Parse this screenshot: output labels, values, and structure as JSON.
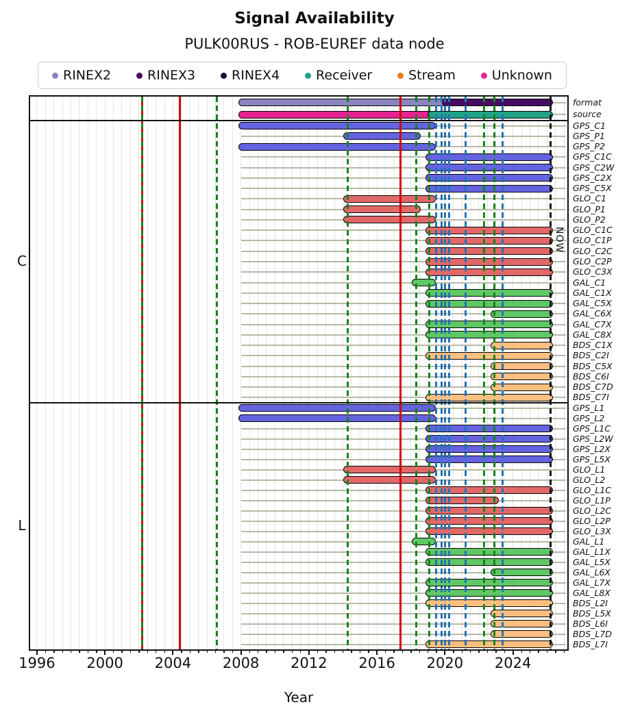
{
  "header": {
    "title": "Signal Availability",
    "subtitle": "PULK00RUS - ROB-EUREF data node"
  },
  "chart_data": {
    "type": "gantt-timeline",
    "title": "Signal Availability",
    "subtitle": "PULK00RUS - ROB-EUREF data node",
    "xlabel": "Year",
    "xlim": [
      1995.6,
      2027.2
    ],
    "x_major_ticks": [
      1996,
      2000,
      2004,
      2008,
      2012,
      2016,
      2020,
      2024
    ],
    "x_minor_step": 0.5,
    "grid": true,
    "now": 2026.2,
    "now_label": "NOW",
    "track_start": 2008.0,
    "legend": {
      "position": "top",
      "entries": [
        {
          "label": "RINEX2",
          "color": "#8a84c2"
        },
        {
          "label": "RINEX3",
          "color": "#470a63"
        },
        {
          "label": "RINEX4",
          "color": "#20092f"
        },
        {
          "label": "Receiver",
          "color": "#1fa287"
        },
        {
          "label": "Stream",
          "color": "#e87a1e"
        },
        {
          "label": "Unknown",
          "color": "#e62290"
        }
      ]
    },
    "colors": {
      "GPS": "#6463e0",
      "GLO": "#e26868",
      "GAL": "#5fc765",
      "BDS": "#fbbf81",
      "RINEX2": "#8a84c2",
      "RINEX3": "#470a63",
      "RINEX4": "#20092f",
      "Receiver": "#1fa287",
      "Stream": "#e87a1e",
      "Unknown": "#e62290"
    },
    "sections": [
      {
        "label": "",
        "rows": [
          {
            "label": "format",
            "segments": [
              {
                "start": 2008.0,
                "end": 2020.0,
                "color_key": "RINEX2"
              },
              {
                "start": 2020.0,
                "end": 2026.2,
                "color_key": "RINEX3"
              }
            ]
          },
          {
            "label": "source",
            "segments": [
              {
                "start": 2008.0,
                "end": 2019.15,
                "color_key": "Unknown"
              },
              {
                "start": 2019.15,
                "end": 2026.2,
                "color_key": "Receiver"
              }
            ]
          }
        ]
      },
      {
        "label": "C",
        "rows": [
          {
            "label": "GPS_C1",
            "segments": [
              {
                "start": 2008.0,
                "end": 2019.3,
                "color_key": "GPS"
              }
            ]
          },
          {
            "label": "GPS_P1",
            "segments": [
              {
                "start": 2014.2,
                "end": 2018.4,
                "color_key": "GPS"
              }
            ]
          },
          {
            "label": "GPS_P2",
            "segments": [
              {
                "start": 2008.0,
                "end": 2019.3,
                "color_key": "GPS"
              }
            ]
          },
          {
            "label": "GPS_C1C",
            "segments": [
              {
                "start": 2019.0,
                "end": 2026.2,
                "color_key": "GPS"
              }
            ]
          },
          {
            "label": "GPS_C2W",
            "segments": [
              {
                "start": 2019.0,
                "end": 2026.2,
                "color_key": "GPS"
              }
            ]
          },
          {
            "label": "GPS_C2X",
            "segments": [
              {
                "start": 2019.0,
                "end": 2026.2,
                "color_key": "GPS"
              }
            ]
          },
          {
            "label": "GPS_C5X",
            "segments": [
              {
                "start": 2019.0,
                "end": 2026.2,
                "color_key": "GPS"
              }
            ]
          },
          {
            "label": "GLO_C1",
            "segments": [
              {
                "start": 2014.2,
                "end": 2019.3,
                "color_key": "GLO"
              }
            ]
          },
          {
            "label": "GLO_P1",
            "segments": [
              {
                "start": 2014.2,
                "end": 2018.4,
                "color_key": "GLO"
              }
            ]
          },
          {
            "label": "GLO_P2",
            "segments": [
              {
                "start": 2014.2,
                "end": 2019.3,
                "color_key": "GLO"
              }
            ]
          },
          {
            "label": "GLO_C1C",
            "segments": [
              {
                "start": 2019.0,
                "end": 2026.2,
                "color_key": "GLO"
              }
            ]
          },
          {
            "label": "GLO_C1P",
            "segments": [
              {
                "start": 2019.0,
                "end": 2026.2,
                "color_key": "GLO"
              }
            ]
          },
          {
            "label": "GLO_C2C",
            "segments": [
              {
                "start": 2019.0,
                "end": 2026.2,
                "color_key": "GLO"
              }
            ]
          },
          {
            "label": "GLO_C2P",
            "segments": [
              {
                "start": 2019.0,
                "end": 2026.2,
                "color_key": "GLO"
              }
            ]
          },
          {
            "label": "GLO_C3X",
            "segments": [
              {
                "start": 2019.0,
                "end": 2026.2,
                "color_key": "GLO"
              }
            ]
          },
          {
            "label": "GAL_C1",
            "segments": [
              {
                "start": 2018.2,
                "end": 2019.3,
                "color_key": "GAL"
              }
            ]
          },
          {
            "label": "GAL_C1X",
            "segments": [
              {
                "start": 2019.0,
                "end": 2026.2,
                "color_key": "GAL"
              }
            ]
          },
          {
            "label": "GAL_C5X",
            "segments": [
              {
                "start": 2019.0,
                "end": 2026.2,
                "color_key": "GAL"
              }
            ]
          },
          {
            "label": "GAL_C6X",
            "segments": [
              {
                "start": 2022.85,
                "end": 2026.2,
                "color_key": "GAL"
              }
            ]
          },
          {
            "label": "GAL_C7X",
            "segments": [
              {
                "start": 2019.0,
                "end": 2026.2,
                "color_key": "GAL"
              }
            ]
          },
          {
            "label": "GAL_C8X",
            "segments": [
              {
                "start": 2019.0,
                "end": 2026.2,
                "color_key": "GAL"
              }
            ]
          },
          {
            "label": "BDS_C1X",
            "segments": [
              {
                "start": 2022.85,
                "end": 2026.2,
                "color_key": "BDS"
              }
            ]
          },
          {
            "label": "BDS_C2I",
            "segments": [
              {
                "start": 2019.0,
                "end": 2026.2,
                "color_key": "BDS"
              }
            ]
          },
          {
            "label": "BDS_C5X",
            "segments": [
              {
                "start": 2022.85,
                "end": 2026.2,
                "color_key": "BDS"
              }
            ]
          },
          {
            "label": "BDS_C6I",
            "segments": [
              {
                "start": 2022.85,
                "end": 2026.2,
                "color_key": "BDS"
              }
            ]
          },
          {
            "label": "BDS_C7D",
            "segments": [
              {
                "start": 2022.85,
                "end": 2026.2,
                "color_key": "BDS"
              }
            ]
          },
          {
            "label": "BDS_C7I",
            "segments": [
              {
                "start": 2019.0,
                "end": 2026.2,
                "color_key": "BDS"
              }
            ]
          }
        ]
      },
      {
        "label": "L",
        "rows": [
          {
            "label": "GPS_L1",
            "segments": [
              {
                "start": 2008.0,
                "end": 2019.3,
                "color_key": "GPS"
              }
            ]
          },
          {
            "label": "GPS_L2",
            "segments": [
              {
                "start": 2008.0,
                "end": 2019.3,
                "color_key": "GPS"
              }
            ]
          },
          {
            "label": "GPS_L1C",
            "segments": [
              {
                "start": 2019.0,
                "end": 2026.2,
                "color_key": "GPS"
              }
            ]
          },
          {
            "label": "GPS_L2W",
            "segments": [
              {
                "start": 2019.0,
                "end": 2026.2,
                "color_key": "GPS"
              }
            ]
          },
          {
            "label": "GPS_L2X",
            "segments": [
              {
                "start": 2019.0,
                "end": 2026.2,
                "color_key": "GPS"
              }
            ]
          },
          {
            "label": "GPS_L5X",
            "segments": [
              {
                "start": 2019.0,
                "end": 2026.2,
                "color_key": "GPS"
              }
            ]
          },
          {
            "label": "GLO_L1",
            "segments": [
              {
                "start": 2014.2,
                "end": 2019.3,
                "color_key": "GLO"
              }
            ]
          },
          {
            "label": "GLO_L2",
            "segments": [
              {
                "start": 2014.2,
                "end": 2019.3,
                "color_key": "GLO"
              }
            ]
          },
          {
            "label": "GLO_L1C",
            "segments": [
              {
                "start": 2019.0,
                "end": 2026.2,
                "color_key": "GLO"
              }
            ]
          },
          {
            "label": "GLO_L1P",
            "segments": [
              {
                "start": 2019.0,
                "end": 2023.0,
                "color_key": "GLO"
              }
            ]
          },
          {
            "label": "GLO_L2C",
            "segments": [
              {
                "start": 2019.0,
                "end": 2026.2,
                "color_key": "GLO"
              }
            ]
          },
          {
            "label": "GLO_L2P",
            "segments": [
              {
                "start": 2019.0,
                "end": 2026.2,
                "color_key": "GLO"
              }
            ]
          },
          {
            "label": "GLO_L3X",
            "segments": [
              {
                "start": 2019.0,
                "end": 2026.2,
                "color_key": "GLO"
              }
            ]
          },
          {
            "label": "GAL_L1",
            "segments": [
              {
                "start": 2018.2,
                "end": 2019.3,
                "color_key": "GAL"
              }
            ]
          },
          {
            "label": "GAL_L1X",
            "segments": [
              {
                "start": 2019.0,
                "end": 2026.2,
                "color_key": "GAL"
              }
            ]
          },
          {
            "label": "GAL_L5X",
            "segments": [
              {
                "start": 2019.0,
                "end": 2026.2,
                "color_key": "GAL"
              }
            ]
          },
          {
            "label": "GAL_L6X",
            "segments": [
              {
                "start": 2022.85,
                "end": 2026.2,
                "color_key": "GAL"
              }
            ]
          },
          {
            "label": "GAL_L7X",
            "segments": [
              {
                "start": 2019.0,
                "end": 2026.2,
                "color_key": "GAL"
              }
            ]
          },
          {
            "label": "GAL_L8X",
            "segments": [
              {
                "start": 2019.0,
                "end": 2026.2,
                "color_key": "GAL"
              }
            ]
          },
          {
            "label": "BDS_L2I",
            "segments": [
              {
                "start": 2019.0,
                "end": 2026.2,
                "color_key": "BDS"
              }
            ]
          },
          {
            "label": "BDS_L5X",
            "segments": [
              {
                "start": 2022.85,
                "end": 2026.2,
                "color_key": "BDS"
              }
            ]
          },
          {
            "label": "BDS_L6I",
            "segments": [
              {
                "start": 2022.85,
                "end": 2026.2,
                "color_key": "BDS"
              }
            ]
          },
          {
            "label": "BDS_L7D",
            "segments": [
              {
                "start": 2022.85,
                "end": 2026.2,
                "color_key": "BDS"
              }
            ]
          },
          {
            "label": "BDS_L7I",
            "segments": [
              {
                "start": 2019.0,
                "end": 2026.2,
                "color_key": "BDS"
              }
            ]
          }
        ]
      }
    ],
    "vlines": [
      {
        "x": 2002.2,
        "style": "solid",
        "color": "#d40000"
      },
      {
        "x": 2002.2,
        "style": "dashed",
        "color": "#15831c"
      },
      {
        "x": 2004.4,
        "style": "solid",
        "color": "#d40000"
      },
      {
        "x": 2006.6,
        "style": "dashed",
        "color": "#15831c"
      },
      {
        "x": 2014.3,
        "style": "dashed",
        "color": "#15831c"
      },
      {
        "x": 2017.4,
        "style": "solid",
        "color": "#d40000"
      },
      {
        "x": 2018.3,
        "style": "dashed",
        "color": "#15831c"
      },
      {
        "x": 2019.07,
        "style": "dashed",
        "color": "#15831c"
      },
      {
        "x": 2019.5,
        "style": "dashed",
        "color": "#2273b5"
      },
      {
        "x": 2019.8,
        "style": "dashed",
        "color": "#2273b5"
      },
      {
        "x": 2020.0,
        "style": "dashed",
        "color": "#2273b5"
      },
      {
        "x": 2020.25,
        "style": "dashed",
        "color": "#2273b5"
      },
      {
        "x": 2021.2,
        "style": "dashed",
        "color": "#2273b5"
      },
      {
        "x": 2022.3,
        "style": "dashed",
        "color": "#15831c"
      },
      {
        "x": 2022.9,
        "style": "dashed",
        "color": "#15831c"
      },
      {
        "x": 2023.4,
        "style": "dashed",
        "color": "#2273b5"
      },
      {
        "x": 2026.2,
        "style": "dashed",
        "color": "#111111",
        "name": "now-line"
      }
    ]
  }
}
